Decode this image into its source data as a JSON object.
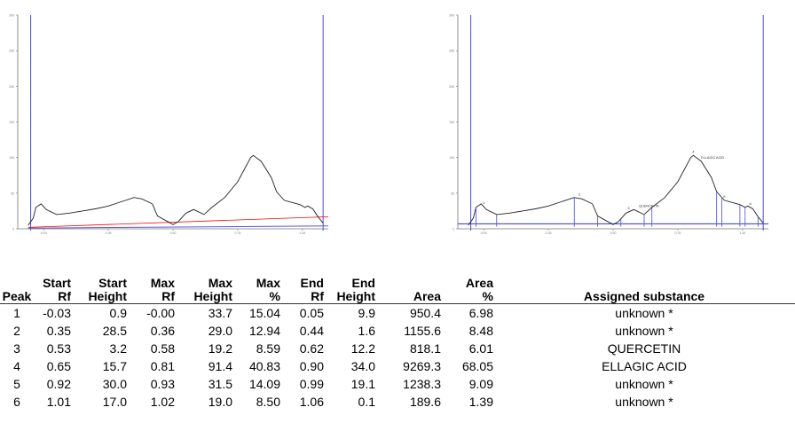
{
  "chart_data": [
    {
      "type": "line",
      "xlim": [
        -0.1,
        1.1
      ],
      "ylim": [
        0,
        300
      ],
      "y_ticks": [
        0,
        50,
        100,
        150,
        200,
        250,
        300
      ],
      "x_ticks": [
        0.0,
        0.25,
        0.5,
        0.75,
        1.0,
        1.25
      ],
      "front_rf": -0.05,
      "end_rf": 1.08,
      "baseline_color": "#ff0000",
      "trace": {
        "x": [
          -0.06,
          -0.04,
          -0.03,
          -0.01,
          0.01,
          0.05,
          0.1,
          0.15,
          0.2,
          0.25,
          0.3,
          0.35,
          0.38,
          0.42,
          0.44,
          0.5,
          0.52,
          0.55,
          0.58,
          0.62,
          0.65,
          0.7,
          0.75,
          0.8,
          0.81,
          0.84,
          0.88,
          0.9,
          0.93,
          0.96,
          0.99,
          1.01,
          1.02,
          1.04,
          1.06,
          1.08
        ],
        "y": [
          5,
          15,
          30,
          35,
          27,
          20,
          22,
          25,
          28,
          32,
          38,
          44,
          42,
          35,
          18,
          6,
          10,
          22,
          27,
          20,
          30,
          44,
          66,
          100,
          103,
          95,
          72,
          52,
          40,
          37,
          34,
          30,
          32,
          28,
          17,
          8
        ]
      }
    },
    {
      "type": "line",
      "xlim": [
        -0.1,
        1.1
      ],
      "ylim": [
        0,
        300
      ],
      "y_ticks": [
        0,
        50,
        100,
        150,
        200,
        250,
        300
      ],
      "x_ticks": [
        0.0,
        0.25,
        0.5,
        0.75,
        1.0,
        1.25
      ],
      "front_rf": -0.05,
      "end_rf": 1.08,
      "baseline_color": "#3333cc",
      "peak_markers": [
        "1",
        "2",
        "3",
        "4",
        "5",
        "6"
      ],
      "annotations": [
        "QUERCETIN",
        "ELLAGIC ACID"
      ],
      "trace": {
        "x": [
          -0.06,
          -0.04,
          -0.03,
          -0.01,
          0.01,
          0.05,
          0.1,
          0.15,
          0.2,
          0.25,
          0.3,
          0.35,
          0.38,
          0.42,
          0.44,
          0.5,
          0.52,
          0.55,
          0.58,
          0.62,
          0.65,
          0.7,
          0.75,
          0.8,
          0.81,
          0.84,
          0.88,
          0.9,
          0.93,
          0.96,
          0.99,
          1.01,
          1.02,
          1.04,
          1.06,
          1.08
        ],
        "y": [
          5,
          15,
          30,
          35,
          27,
          20,
          22,
          25,
          28,
          32,
          38,
          44,
          42,
          35,
          18,
          6,
          10,
          22,
          27,
          20,
          30,
          44,
          66,
          100,
          103,
          95,
          72,
          52,
          40,
          37,
          34,
          30,
          32,
          28,
          17,
          8
        ]
      },
      "peak_bounds": [
        -0.03,
        0.05,
        0.35,
        0.44,
        0.53,
        0.62,
        0.65,
        0.9,
        0.92,
        0.99,
        1.01,
        1.06
      ]
    }
  ],
  "table": {
    "headers": [
      [
        "",
        "Peak"
      ],
      [
        "Start",
        "Rf"
      ],
      [
        "Start",
        "Height"
      ],
      [
        "Max",
        "Rf"
      ],
      [
        "Max",
        "Height"
      ],
      [
        "Max",
        "%"
      ],
      [
        "End",
        "Rf"
      ],
      [
        "End",
        "Height"
      ],
      [
        "",
        "Area"
      ],
      [
        "Area",
        "%"
      ],
      [
        "",
        "Assigned substance"
      ]
    ],
    "rows": [
      [
        "1",
        "-0.03",
        "0.9",
        "-0.00",
        "33.7",
        "15.04",
        "0.05",
        "9.9",
        "950.4",
        "6.98",
        "unknown *"
      ],
      [
        "2",
        "0.35",
        "28.5",
        "0.36",
        "29.0",
        "12.94",
        "0.44",
        "1.6",
        "1155.6",
        "8.48",
        "unknown *"
      ],
      [
        "3",
        "0.53",
        "3.2",
        "0.58",
        "19.2",
        "8.59",
        "0.62",
        "12.2",
        "818.1",
        "6.01",
        "QUERCETIN"
      ],
      [
        "4",
        "0.65",
        "15.7",
        "0.81",
        "91.4",
        "40.83",
        "0.90",
        "34.0",
        "9269.3",
        "68.05",
        "ELLAGIC ACID"
      ],
      [
        "5",
        "0.92",
        "30.0",
        "0.93",
        "31.5",
        "14.09",
        "0.99",
        "19.1",
        "1238.3",
        "9.09",
        "unknown *"
      ],
      [
        "6",
        "1.01",
        "17.0",
        "1.02",
        "19.0",
        "8.50",
        "1.06",
        "0.1",
        "189.6",
        "1.39",
        "unknown *"
      ]
    ]
  }
}
